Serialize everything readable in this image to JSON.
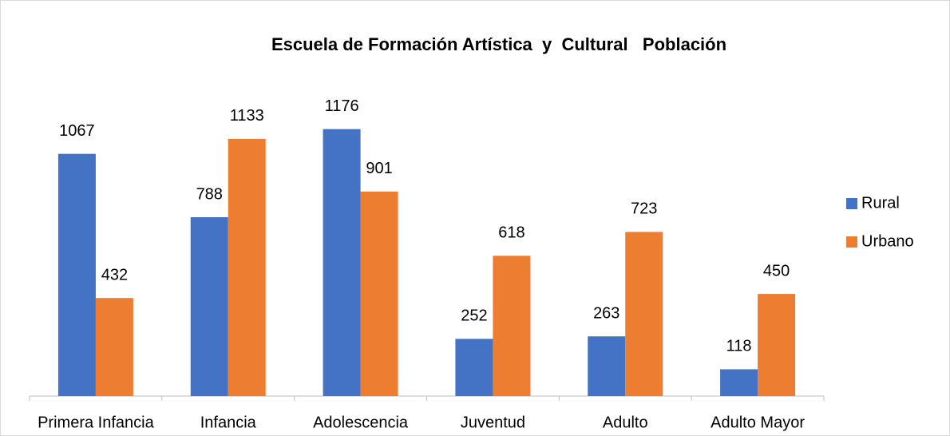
{
  "chart_data": {
    "type": "bar",
    "title": "Escuela de Formación Artística  y  Cultural   Población",
    "categories": [
      "Primera Infancia",
      "Infancia",
      "Adolescencia",
      "Juventud",
      "Adulto",
      "Adulto Mayor"
    ],
    "series": [
      {
        "name": "Rural",
        "color": "#4472c4",
        "values": [
          1067,
          788,
          1176,
          252,
          263,
          118
        ]
      },
      {
        "name": "Urbano",
        "color": "#ed7d31",
        "values": [
          432,
          1133,
          901,
          618,
          723,
          450
        ]
      }
    ],
    "ylim": [
      0,
      1400
    ],
    "legend": "right"
  }
}
